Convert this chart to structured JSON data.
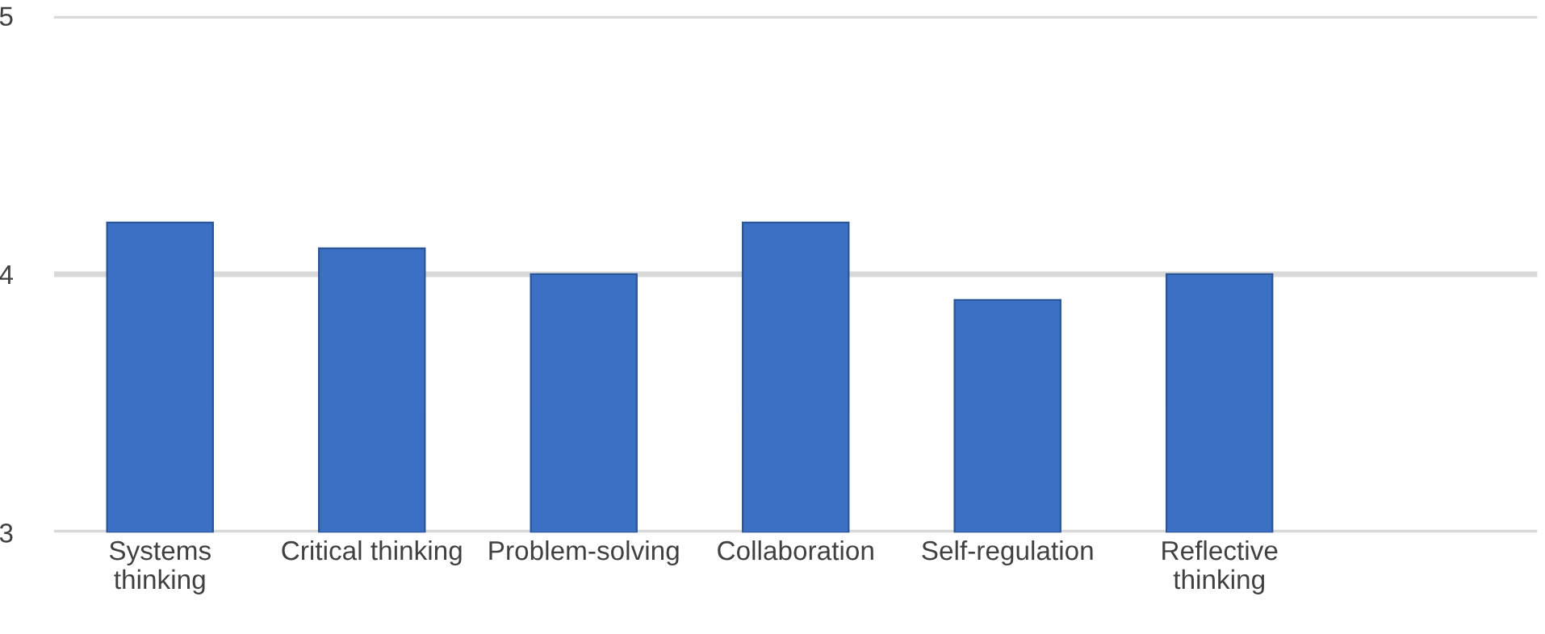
{
  "chart_data": {
    "type": "bar",
    "categories": [
      "Systems\nthinking",
      "Critical thinking",
      "Problem-solving",
      "Collaboration",
      "Self-regulation",
      "Reflective\nthinking"
    ],
    "values": [
      4.2,
      4.1,
      4.0,
      4.2,
      3.9,
      4.0
    ],
    "color": "#3c70c4",
    "ylim": [
      3,
      5
    ],
    "yticks": [
      3,
      4,
      5
    ],
    "grid": "y",
    "legend": false
  }
}
